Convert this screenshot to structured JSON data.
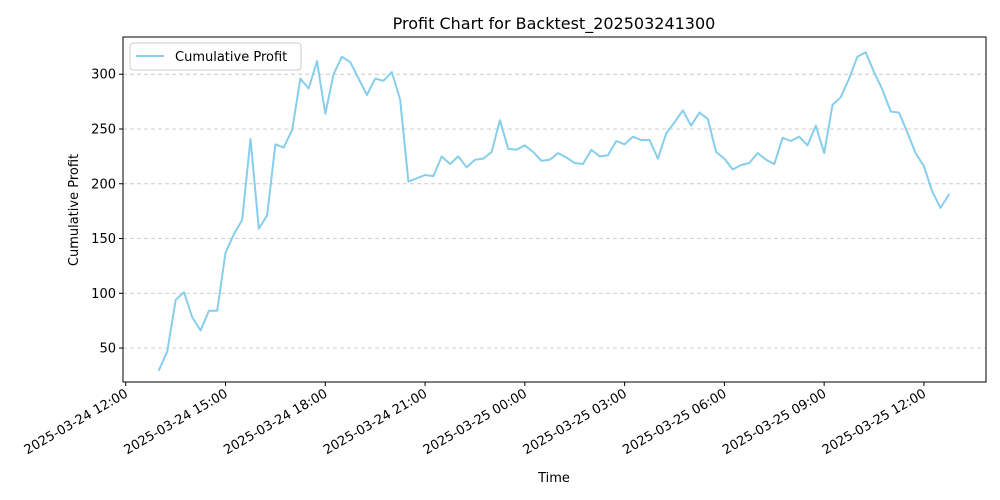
{
  "chart_data": {
    "type": "line",
    "title": "Profit Chart for Backtest_202503241300",
    "xlabel": "Time",
    "ylabel": "Cumulative Profit",
    "grid": "y-dashed",
    "legend_position": "top-left",
    "series_color": "#87ceeb",
    "xlim": [
      "2025-03-24 11:55",
      "2025-03-25 13:52"
    ],
    "ylim": [
      19,
      334
    ],
    "x_ticks": [
      {
        "value": "2025-03-24 12:00",
        "label": "2025-03-24 12:00"
      },
      {
        "value": "2025-03-24 15:00",
        "label": "2025-03-24 15:00"
      },
      {
        "value": "2025-03-24 18:00",
        "label": "2025-03-24 18:00"
      },
      {
        "value": "2025-03-24 21:00",
        "label": "2025-03-24 21:00"
      },
      {
        "value": "2025-03-25 00:00",
        "label": "2025-03-25 00:00"
      },
      {
        "value": "2025-03-25 03:00",
        "label": "2025-03-25 03:00"
      },
      {
        "value": "2025-03-25 06:00",
        "label": "2025-03-25 06:00"
      },
      {
        "value": "2025-03-25 09:00",
        "label": "2025-03-25 09:00"
      },
      {
        "value": "2025-03-25 12:00",
        "label": "2025-03-25 12:00"
      }
    ],
    "y_ticks": [
      50,
      100,
      150,
      200,
      250,
      300
    ],
    "series": [
      {
        "name": "Cumulative Profit",
        "x": [
          "2025-03-24 13:00",
          "2025-03-24 13:15",
          "2025-03-24 13:30",
          "2025-03-24 13:45",
          "2025-03-24 14:00",
          "2025-03-24 14:15",
          "2025-03-24 14:30",
          "2025-03-24 14:45",
          "2025-03-24 15:00",
          "2025-03-24 15:15",
          "2025-03-24 15:30",
          "2025-03-24 15:45",
          "2025-03-24 16:00",
          "2025-03-24 16:15",
          "2025-03-24 16:30",
          "2025-03-24 16:45",
          "2025-03-24 17:00",
          "2025-03-24 17:15",
          "2025-03-24 17:30",
          "2025-03-24 17:45",
          "2025-03-24 18:00",
          "2025-03-24 18:15",
          "2025-03-24 18:30",
          "2025-03-24 18:45",
          "2025-03-24 19:00",
          "2025-03-24 19:15",
          "2025-03-24 19:30",
          "2025-03-24 19:45",
          "2025-03-24 20:00",
          "2025-03-24 20:15",
          "2025-03-24 20:30",
          "2025-03-24 20:45",
          "2025-03-24 21:00",
          "2025-03-24 21:15",
          "2025-03-24 21:30",
          "2025-03-24 21:45",
          "2025-03-24 22:00",
          "2025-03-24 22:15",
          "2025-03-24 22:30",
          "2025-03-24 22:45",
          "2025-03-24 23:00",
          "2025-03-24 23:15",
          "2025-03-24 23:30",
          "2025-03-24 23:45",
          "2025-03-25 00:00",
          "2025-03-25 00:15",
          "2025-03-25 00:30",
          "2025-03-25 00:45",
          "2025-03-25 01:00",
          "2025-03-25 01:15",
          "2025-03-25 01:30",
          "2025-03-25 01:45",
          "2025-03-25 02:00",
          "2025-03-25 02:15",
          "2025-03-25 02:30",
          "2025-03-25 02:45",
          "2025-03-25 03:00",
          "2025-03-25 03:15",
          "2025-03-25 03:30",
          "2025-03-25 03:45",
          "2025-03-25 04:00",
          "2025-03-25 04:15",
          "2025-03-25 04:30",
          "2025-03-25 04:45",
          "2025-03-25 05:00",
          "2025-03-25 05:15",
          "2025-03-25 05:30",
          "2025-03-25 05:45",
          "2025-03-25 06:00",
          "2025-03-25 06:15",
          "2025-03-25 06:30",
          "2025-03-25 06:45",
          "2025-03-25 07:00",
          "2025-03-25 07:15",
          "2025-03-25 07:30",
          "2025-03-25 07:45",
          "2025-03-25 08:00",
          "2025-03-25 08:15",
          "2025-03-25 08:30",
          "2025-03-25 08:45",
          "2025-03-25 09:00",
          "2025-03-25 09:15",
          "2025-03-25 09:30",
          "2025-03-25 09:45",
          "2025-03-25 10:00",
          "2025-03-25 10:15",
          "2025-03-25 10:30",
          "2025-03-25 10:45",
          "2025-03-25 11:00",
          "2025-03-25 11:15",
          "2025-03-25 11:30",
          "2025-03-25 11:45",
          "2025-03-25 12:00",
          "2025-03-25 12:15",
          "2025-03-25 12:30",
          "2025-03-25 12:45"
        ],
        "values": [
          30,
          47,
          94,
          101,
          78,
          66,
          84,
          84,
          137,
          154,
          167,
          241,
          159,
          171,
          236,
          233,
          249,
          296,
          287,
          312,
          264,
          300,
          316,
          311,
          296,
          281,
          296,
          294,
          302,
          277,
          202,
          205,
          208,
          207,
          225,
          218,
          225,
          215,
          222,
          223,
          229,
          258,
          232,
          231,
          235,
          229,
          221,
          222,
          228,
          224,
          219,
          218,
          231,
          225,
          226,
          239,
          236,
          243,
          240,
          240,
          223,
          246,
          256,
          267,
          253,
          265,
          259,
          229,
          223,
          213,
          217,
          219,
          228,
          222,
          218,
          242,
          239,
          243,
          235,
          253,
          228,
          272,
          279,
          296,
          316,
          320,
          302,
          286,
          266,
          265,
          247,
          228,
          216,
          193,
          178,
          190
        ]
      }
    ]
  }
}
